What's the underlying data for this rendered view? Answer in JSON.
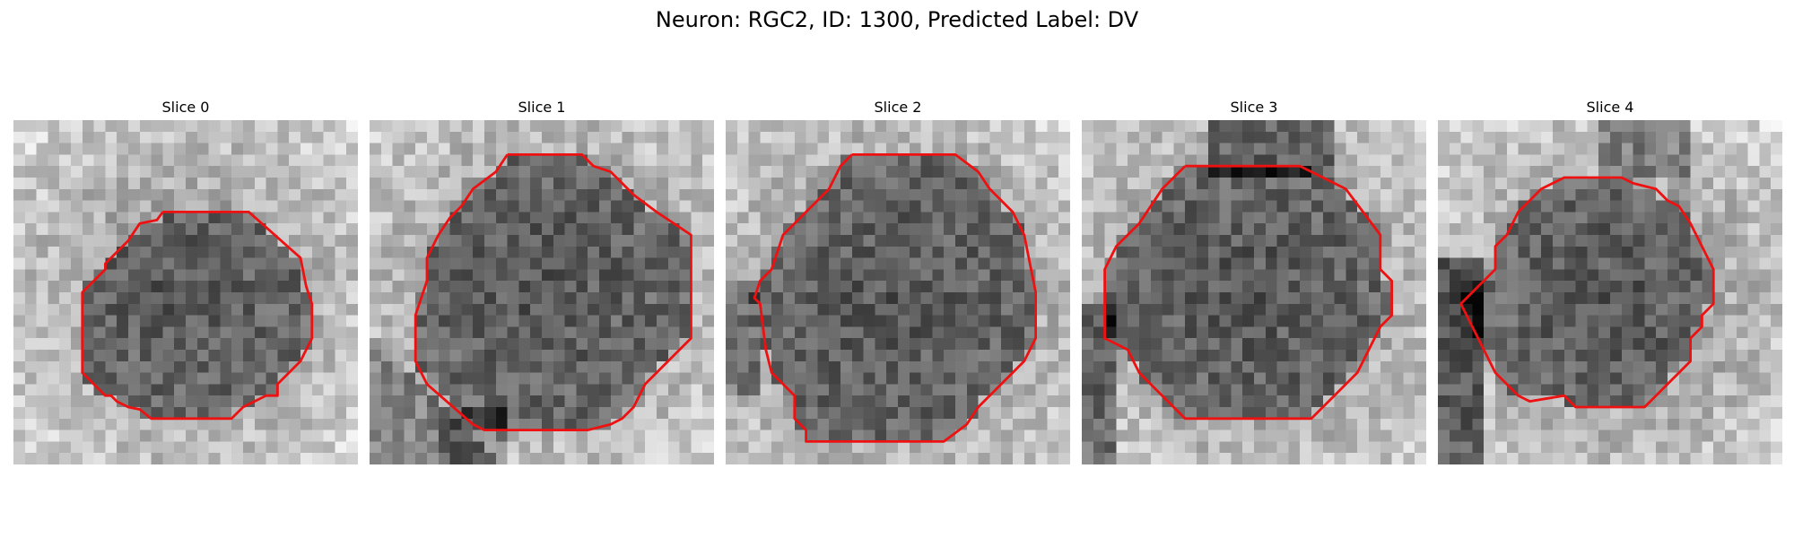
{
  "figure": {
    "title": "Neuron: RGC2, ID: 1300, Predicted Label: DV",
    "contour_color": "#ee1111"
  },
  "slices": [
    {
      "title": "Slice 0"
    },
    {
      "title": "Slice 1"
    },
    {
      "title": "Slice 2"
    },
    {
      "title": "Slice 3"
    },
    {
      "title": "Slice 4"
    }
  ]
}
